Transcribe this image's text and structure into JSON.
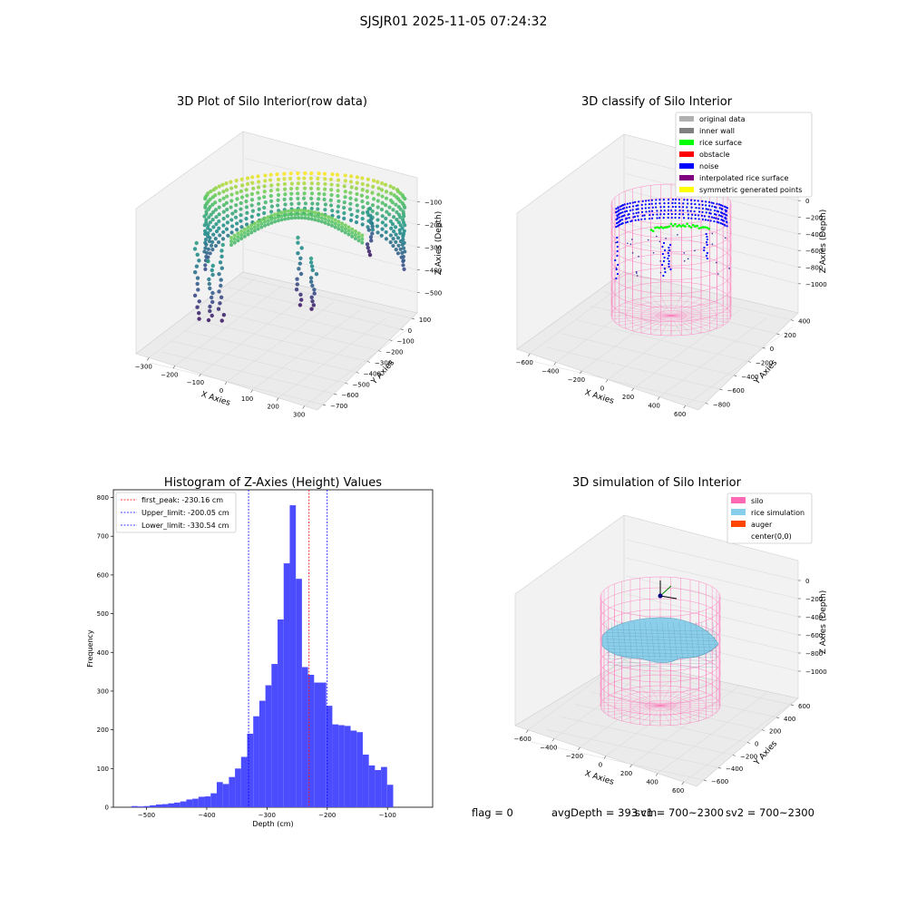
{
  "figure": {
    "suptitle": "SJSJR01 2025-11-05 07:24:32",
    "footer": {
      "flag": "flag = 0",
      "avg_depth": "avgDepth = 393 cm",
      "sv1": "sv1 = 700~2300",
      "sv2": "sv2 = 700~2300"
    }
  },
  "colors": {
    "hist_bar": "#4c4cff",
    "peak_line": "#ff0000",
    "limit_line": "#0000ff",
    "pane": "#f2f2f2",
    "silo": "#ff69b4",
    "rice_simulation": "#87ceeb",
    "auger": "#ff4500",
    "noise": "#0000ff",
    "rice_surface": "#00ff00"
  },
  "chart_data": [
    {
      "type": "scatter",
      "title": "3D Plot of Silo Interior(row data)",
      "xlabel": "X Axies",
      "ylabel": "Y Axies",
      "zlabel": "Z Axies (Depth)",
      "x_ticks": [
        "−300",
        "−200",
        "−100",
        "0",
        "100",
        "200",
        "300"
      ],
      "y_ticks": [
        "100",
        "0",
        "−100",
        "−200",
        "−300",
        "−400",
        "−500",
        "−600",
        "−700"
      ],
      "z_ticks": [
        "−100",
        "−200",
        "−300",
        "−400",
        "−500"
      ],
      "colormap": "viridis"
    },
    {
      "type": "scatter",
      "title": "3D classify of Silo Interior",
      "xlabel": "X Axies",
      "ylabel": "Y Axies",
      "zlabel": "Z Axies (Depth)",
      "x_ticks": [
        "−600",
        "−400",
        "−200",
        "0",
        "200",
        "400",
        "600"
      ],
      "y_ticks": [
        "400",
        "200",
        "0",
        "−200",
        "−400",
        "−600",
        "−800"
      ],
      "z_ticks": [
        "0",
        "−200",
        "−400",
        "−600",
        "−800",
        "−1000"
      ],
      "legend": {
        "placement": "top-right",
        "entries": [
          {
            "label": "original data",
            "color": "#b0b0b0"
          },
          {
            "label": "inner wall",
            "color": "#808080"
          },
          {
            "label": "rice surface",
            "color": "#00ff00"
          },
          {
            "label": "obstacle",
            "color": "#ff0000"
          },
          {
            "label": "noise",
            "color": "#0000ff"
          },
          {
            "label": "interpolated rice surface",
            "color": "#800080"
          },
          {
            "label": "symmetric generated points",
            "color": "#ffff00"
          }
        ]
      }
    },
    {
      "type": "bar",
      "title": "Histogram of Z-Axies (Height) Values",
      "xlabel": "Depth (cm)",
      "ylabel": "Frequency",
      "xlim": [
        -555,
        -25
      ],
      "ylim": [
        0,
        820
      ],
      "x_ticks": [
        -500,
        -400,
        -300,
        -200,
        -100
      ],
      "y_ticks": [
        0,
        100,
        200,
        300,
        400,
        500,
        600,
        700,
        800
      ],
      "bin_start": -545,
      "bin_width": 10.1,
      "values": [
        0,
        0,
        3,
        2,
        3,
        5,
        7,
        8,
        10,
        12,
        15,
        20,
        22,
        27,
        28,
        36,
        65,
        60,
        78,
        100,
        130,
        190,
        235,
        275,
        315,
        370,
        485,
        630,
        780,
        590,
        362,
        342,
        322,
        322,
        262,
        214,
        212,
        210,
        198,
        194,
        136,
        108,
        96,
        104,
        58
      ],
      "reference_lines": [
        {
          "label": "first_peak: -230.16 cm",
          "x": -230.16,
          "color": "#ff0000"
        },
        {
          "label": "Upper_limit: -200.05 cm",
          "x": -200.05,
          "color": "#0000ff"
        },
        {
          "label": "Lower_limit: -330.54 cm",
          "x": -330.54,
          "color": "#0000ff"
        }
      ],
      "legend": {
        "placement": "top-left"
      }
    },
    {
      "type": "scatter",
      "title": "3D simulation of Silo Interior",
      "xlabel": "X Axies",
      "ylabel": "Y Axies",
      "zlabel": "Z Axies (Depth)",
      "x_ticks": [
        "−600",
        "−400",
        "−200",
        "0",
        "200",
        "400",
        "600"
      ],
      "y_ticks": [
        "600",
        "400",
        "200",
        "0",
        "−200",
        "−400",
        "−600"
      ],
      "z_ticks": [
        "0",
        "−200",
        "−400",
        "−600",
        "−800",
        "−1000"
      ],
      "legend": {
        "placement": "top-right",
        "entries": [
          {
            "label": "silo",
            "color": "#ff69b4"
          },
          {
            "label": "rice simulation",
            "color": "#87ceeb"
          },
          {
            "label": "auger",
            "color": "#ff4500"
          },
          {
            "label": "center(0,0)",
            "color": ""
          }
        ]
      }
    }
  ]
}
